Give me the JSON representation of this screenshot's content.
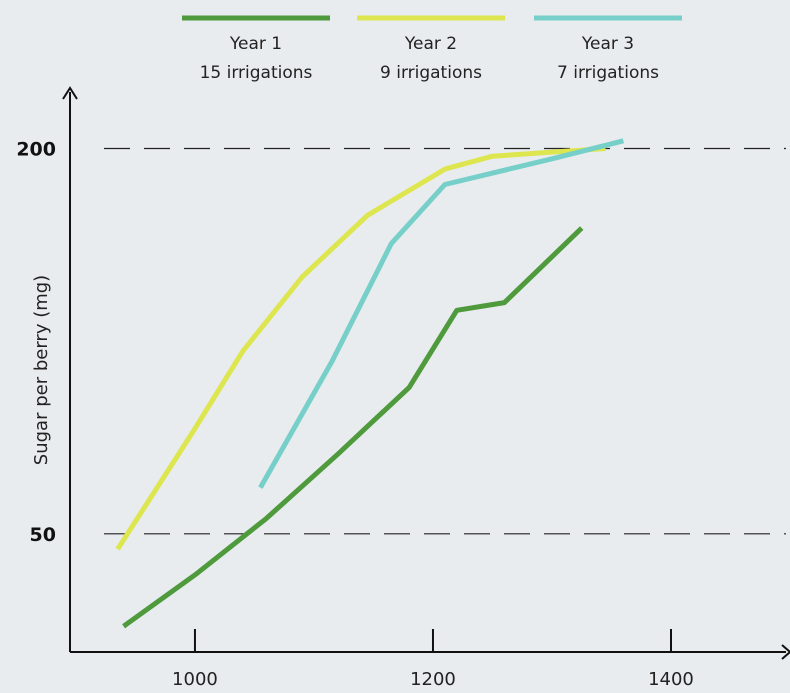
{
  "chart_data": {
    "type": "line",
    "ylabel": "Sugar per berry (mg)",
    "xlabel": "",
    "xlim": [
      895,
      1500
    ],
    "ylim": [
      4,
      222
    ],
    "x_ticks": [
      "1000",
      "1200",
      "1400"
    ],
    "reference_lines": [
      {
        "y": 200,
        "label": "200",
        "style": "dashed"
      },
      {
        "y": 50,
        "label": "50",
        "style": "dashed"
      }
    ],
    "legend_position": "top",
    "grid": false,
    "series": [
      {
        "name": "Year 1",
        "subtitle": "15 irrigations",
        "color": "#4e9a3c",
        "points": [
          [
            940,
            14
          ],
          [
            1000,
            34
          ],
          [
            1060,
            56
          ],
          [
            1120,
            81
          ],
          [
            1180,
            107
          ],
          [
            1220,
            137
          ],
          [
            1260,
            140
          ],
          [
            1325,
            169
          ]
        ]
      },
      {
        "name": "Year 2",
        "subtitle": "9 irrigations",
        "color": "#dde64f",
        "points": [
          [
            935,
            44
          ],
          [
            1000,
            91
          ],
          [
            1040,
            121
          ],
          [
            1090,
            150
          ],
          [
            1145,
            174
          ],
          [
            1210,
            192
          ],
          [
            1250,
            197
          ],
          [
            1345,
            200
          ]
        ]
      },
      {
        "name": "Year 3",
        "subtitle": "7 irrigations",
        "color": "#76cfc8",
        "points": [
          [
            1055,
            68
          ],
          [
            1115,
            117
          ],
          [
            1165,
            163
          ],
          [
            1210,
            186
          ],
          [
            1300,
            196
          ],
          [
            1360,
            203
          ]
        ]
      }
    ]
  }
}
